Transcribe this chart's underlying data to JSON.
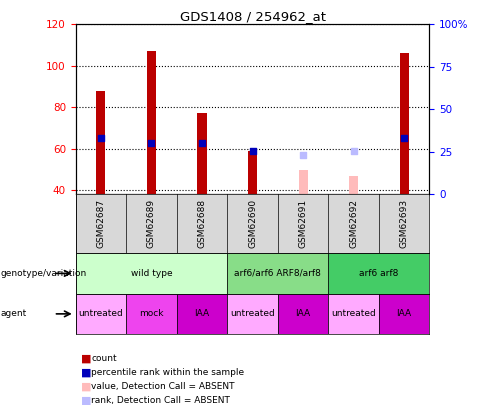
{
  "title": "GDS1408 / 254962_at",
  "samples": [
    "GSM62687",
    "GSM62689",
    "GSM62688",
    "GSM62690",
    "GSM62691",
    "GSM62692",
    "GSM62693"
  ],
  "count_values": [
    88,
    107,
    77,
    59,
    null,
    null,
    106
  ],
  "count_absent_values": [
    null,
    null,
    null,
    null,
    50,
    47,
    null
  ],
  "percentile_values": [
    65,
    63,
    63,
    59,
    null,
    null,
    65
  ],
  "percentile_absent_values": [
    null,
    null,
    null,
    null,
    57,
    59,
    null
  ],
  "ylim_left": [
    38,
    120
  ],
  "yticks_left": [
    40,
    60,
    80,
    100,
    120
  ],
  "yticks_right": [
    0,
    25,
    50,
    75,
    100
  ],
  "ytick_labels_right": [
    "0",
    "25",
    "50",
    "75",
    "100%"
  ],
  "bar_color": "#bb0000",
  "bar_absent_color": "#ffbbbb",
  "dot_color": "#0000bb",
  "dot_absent_color": "#bbbbff",
  "bar_width": 0.18,
  "dot_size": 25,
  "geno_groups": [
    {
      "label": "wild type",
      "start": 0,
      "end": 2,
      "color": "#ccffcc"
    },
    {
      "label": "arf6/arf6 ARF8/arf8",
      "start": 3,
      "end": 4,
      "color": "#88dd88"
    },
    {
      "label": "arf6 arf8",
      "start": 5,
      "end": 6,
      "color": "#44cc66"
    }
  ],
  "agent_items": [
    {
      "label": "untreated",
      "col": 0,
      "color": "#ffaaff"
    },
    {
      "label": "mock",
      "col": 1,
      "color": "#ee44ee"
    },
    {
      "label": "IAA",
      "col": 2,
      "color": "#cc00cc"
    },
    {
      "label": "untreated",
      "col": 3,
      "color": "#ffaaff"
    },
    {
      "label": "IAA",
      "col": 4,
      "color": "#cc00cc"
    },
    {
      "label": "untreated",
      "col": 5,
      "color": "#ffaaff"
    },
    {
      "label": "IAA",
      "col": 6,
      "color": "#cc00cc"
    }
  ]
}
